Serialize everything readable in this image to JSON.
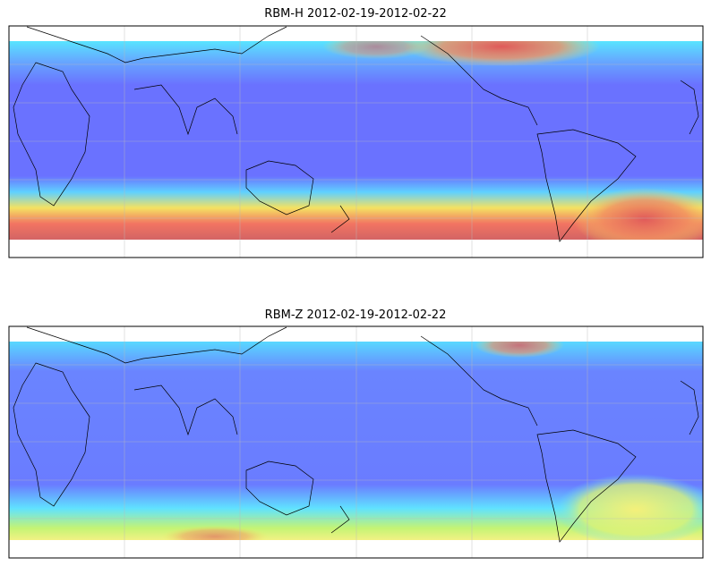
{
  "panels": [
    {
      "title": "RBM-H 2012-02-19-2012-02-22"
    },
    {
      "title": "RBM-Z 2012-02-19-2012-02-22"
    }
  ]
}
